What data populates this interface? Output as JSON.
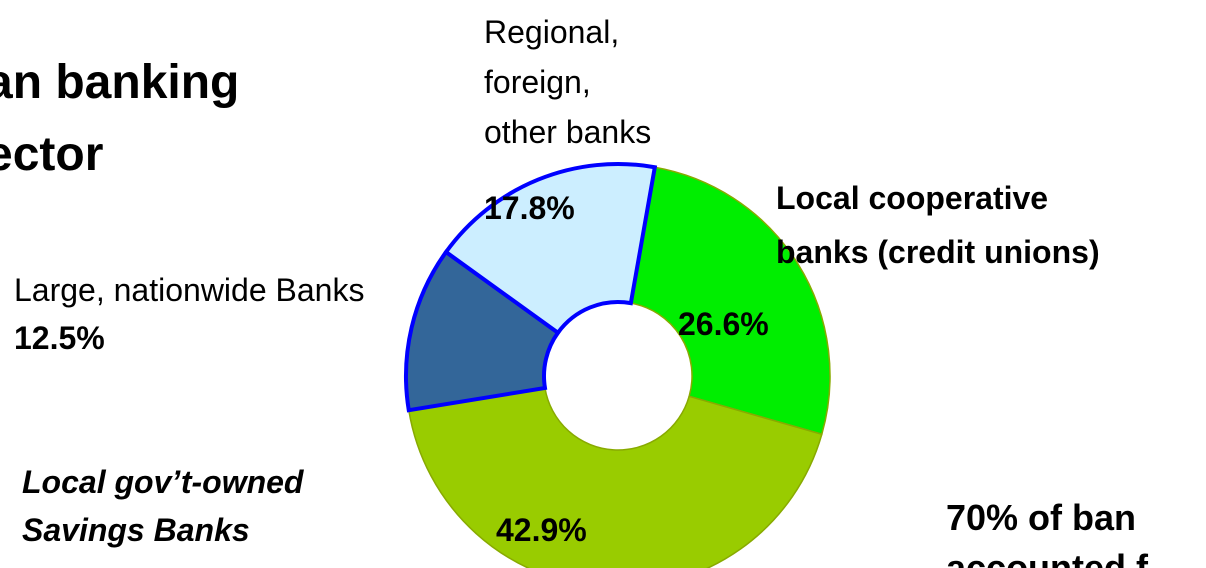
{
  "title": {
    "line1": "an banking",
    "line2": "ector"
  },
  "note": {
    "line1": "70% of ban",
    "line2": "accounted f"
  },
  "chart_data": {
    "type": "pie",
    "style": "donut",
    "slices": [
      {
        "label_lines": [
          "Local cooperative",
          "banks (credit unions)"
        ],
        "value": 26.6,
        "value_label": "26.6%",
        "color": "#00ee00",
        "label_style": "bold"
      },
      {
        "label_lines": [
          "Local gov’t-owned",
          "Savings Banks"
        ],
        "value": 42.9,
        "value_label": "42.9%",
        "color": "#99cc00",
        "label_style": "bold-italic"
      },
      {
        "label_lines": [
          "Large, nationwide Banks"
        ],
        "value": 12.5,
        "value_label": "12.5%",
        "color": "#336699",
        "label_style": "normal"
      },
      {
        "label_lines": [
          "Regional,",
          "foreign,",
          "other banks"
        ],
        "value": 17.8,
        "value_label": "17.8%",
        "color": "#cceeff",
        "label_style": "normal"
      }
    ],
    "border_color": "#0000ff",
    "legend": "none"
  }
}
